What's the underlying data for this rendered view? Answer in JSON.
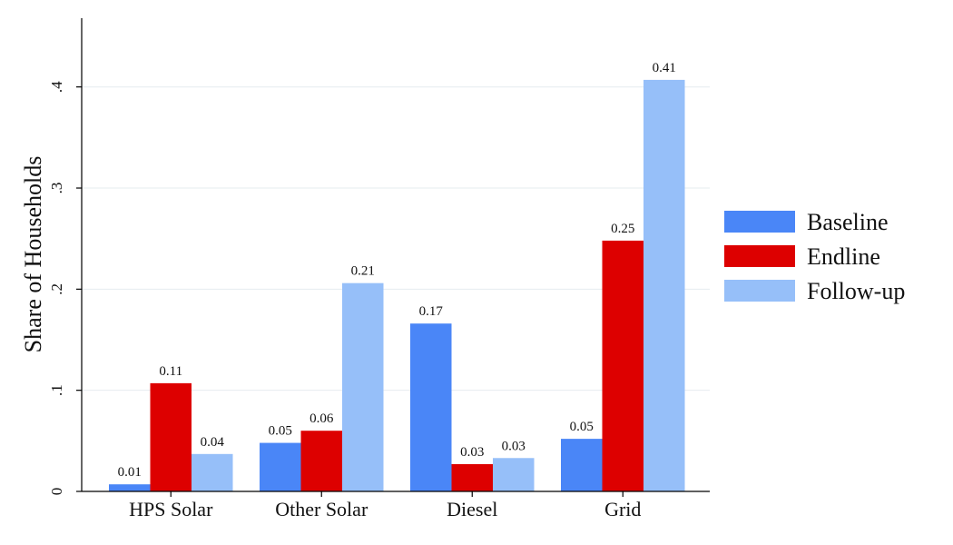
{
  "chart_data": {
    "type": "bar",
    "title": "",
    "xlabel": "",
    "ylabel": "Share of Households",
    "categories": [
      "HPS Solar",
      "Other Solar",
      "Diesel",
      "Grid"
    ],
    "series": [
      {
        "name": "Baseline",
        "color": "#4a86f7",
        "values": [
          0.007,
          0.048,
          0.166,
          0.052
        ],
        "labels": [
          "0.01",
          "0.05",
          "0.17",
          "0.05"
        ]
      },
      {
        "name": "Endline",
        "color": "#dd0000",
        "values": [
          0.107,
          0.06,
          0.027,
          0.248
        ],
        "labels": [
          "0.11",
          "0.06",
          "0.03",
          "0.25"
        ]
      },
      {
        "name": "Follow-up",
        "color": "#96bff9",
        "values": [
          0.037,
          0.206,
          0.033,
          0.407
        ],
        "labels": [
          "0.04",
          "0.21",
          "0.03",
          "0.41"
        ]
      }
    ],
    "ylim": [
      0,
      0.468
    ],
    "yticks": [
      0,
      0.1,
      0.2,
      0.3,
      0.4
    ],
    "ytick_labels": [
      "0",
      ".1",
      ".2",
      ".3",
      ".4"
    ],
    "grid": true,
    "legend_position": "right"
  }
}
